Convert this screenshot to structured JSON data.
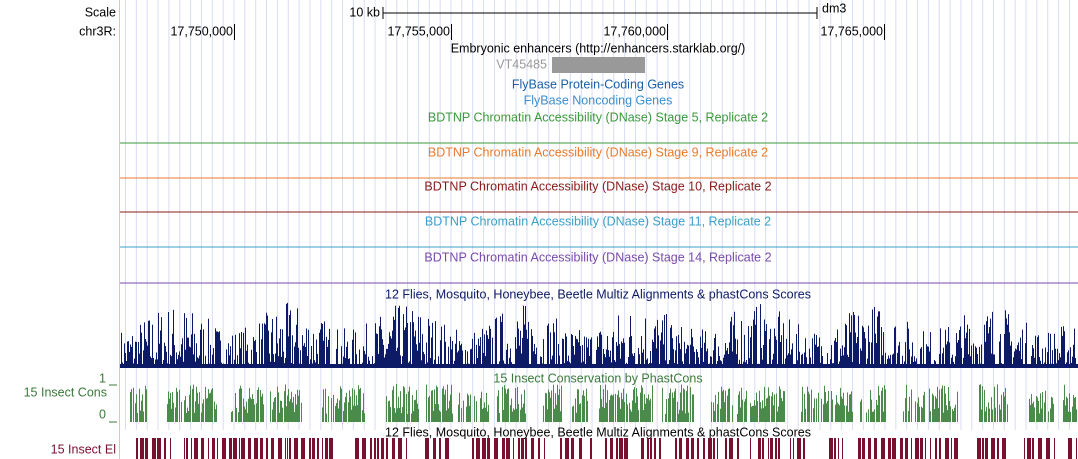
{
  "ruler": {
    "scale_label": "Scale",
    "scale_size": "10 kb",
    "assembly": "dm3",
    "chrom_label": "chr3R:",
    "positions": [
      "17,750,000",
      "17,755,000",
      "17,760,000",
      "17,765,000"
    ]
  },
  "tracks": [
    {
      "title": "Embryonic enhancers (http://enhancers.starklab.org/)",
      "item": "VT45485"
    },
    {
      "title": "FlyBase Protein-Coding Genes"
    },
    {
      "title": "FlyBase Noncoding Genes"
    },
    {
      "title": "BDTNP Chromatin Accessibility (DNase) Stage 5, Replicate 2"
    },
    {
      "title": "BDTNP Chromatin Accessibility (DNase) Stage 9, Replicate 2"
    },
    {
      "title": "BDTNP Chromatin Accessibility (DNase) Stage 10, Replicate 2"
    },
    {
      "title": "BDTNP Chromatin Accessibility (DNase) Stage 11, Replicate 2"
    },
    {
      "title": "BDTNP Chromatin Accessibility (DNase) Stage 14, Replicate 2"
    },
    {
      "title": "12 Flies, Mosquito, Honeybee, Beetle Multiz Alignments & phastCons Scores"
    },
    {
      "title": "15 Insect Conservation by PhastCons",
      "side_label": "15 Insect Cons",
      "axis_max": "1",
      "axis_min": "0"
    },
    {
      "title": "12 Flies, Mosquito, Honeybee, Beetle Multiz Alignments & phastCons Scores",
      "side_label": "15 Insect El"
    }
  ]
}
